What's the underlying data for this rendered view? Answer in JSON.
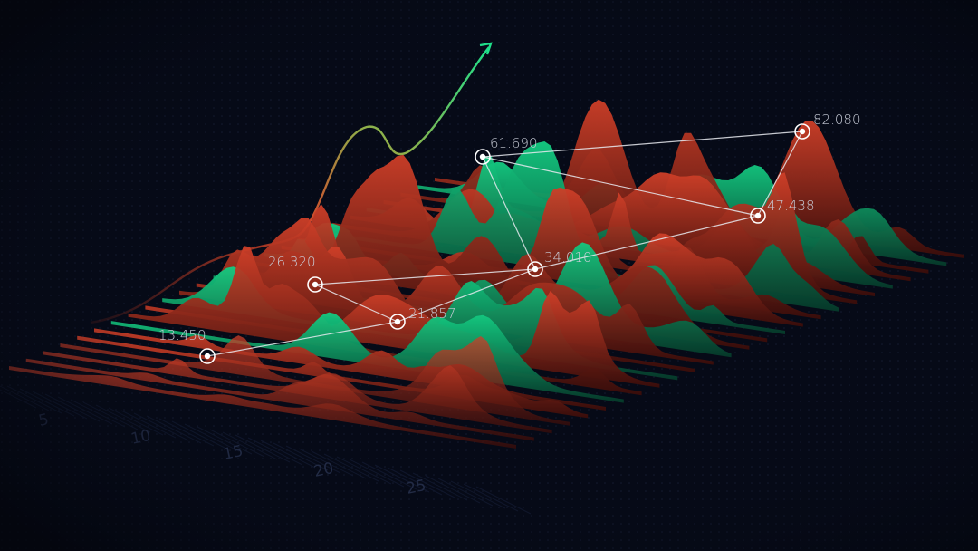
{
  "points": [
    {
      "label": "13.450"
    },
    {
      "label": "26.320"
    },
    {
      "label": "21.857"
    },
    {
      "label": "34.010"
    },
    {
      "label": "61.690"
    },
    {
      "label": "47.438"
    },
    {
      "label": "82.080"
    }
  ],
  "axis": {
    "labels": [
      "5",
      "10",
      "15",
      "20",
      "25"
    ]
  }
}
